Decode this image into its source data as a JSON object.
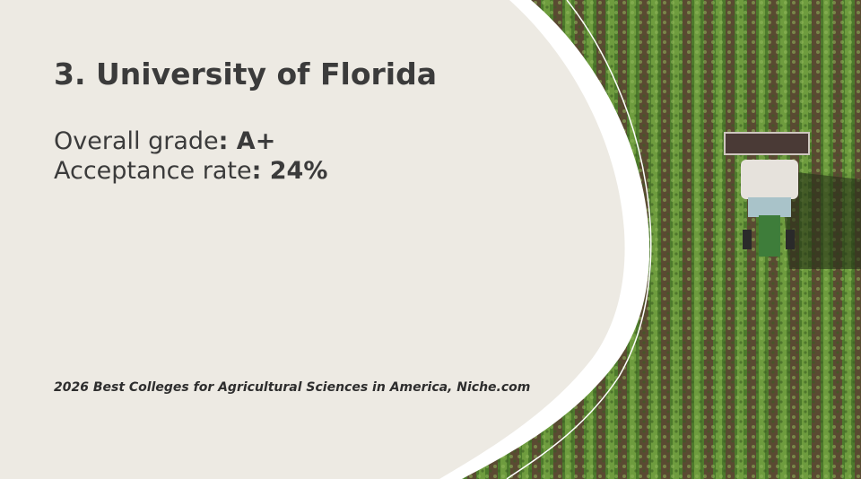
{
  "slide": {
    "title": "3. University of Florida",
    "stats": [
      {
        "label": "Overall grade",
        "value": ": A+"
      },
      {
        "label": "Acceptance rate",
        "value": ": 24%"
      }
    ],
    "source": "2026 Best Colleges for Agricultural Sciences in America, Niche.com"
  }
}
